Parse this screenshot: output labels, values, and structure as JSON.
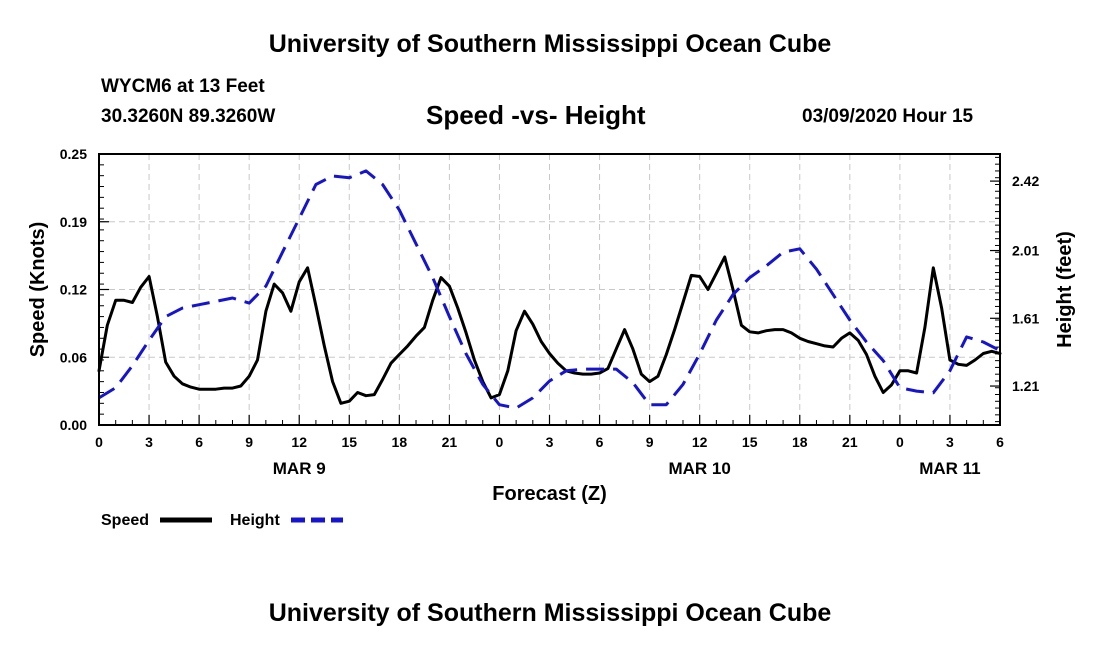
{
  "header": {
    "title_top": "University of Southern Mississippi Ocean Cube",
    "station": "WYCM6 at 13 Feet",
    "coords": "30.3260N 89.3260W",
    "chart_title": "Speed -vs- Height",
    "valid_time": "03/09/2020 Hour 15"
  },
  "footer": {
    "title_bottom": "University of Southern Mississippi Ocean Cube"
  },
  "chart_data": {
    "type": "line",
    "title": "Speed -vs- Height",
    "xlabel": "Forecast (Z)",
    "ylabel": "Speed (Knots)",
    "y2label": "Height (feet)",
    "x_range": [
      0,
      54
    ],
    "ylim": [
      0,
      0.25
    ],
    "y2lim": [
      0.98,
      2.58
    ],
    "grid": true,
    "legend_position": "bottom-left",
    "x_ticks": [
      {
        "x": 0,
        "label": "0"
      },
      {
        "x": 3,
        "label": "3"
      },
      {
        "x": 6,
        "label": "6"
      },
      {
        "x": 9,
        "label": "9"
      },
      {
        "x": 12,
        "label": "12"
      },
      {
        "x": 15,
        "label": "15"
      },
      {
        "x": 18,
        "label": "18"
      },
      {
        "x": 21,
        "label": "21"
      },
      {
        "x": 24,
        "label": "0"
      },
      {
        "x": 27,
        "label": "3"
      },
      {
        "x": 30,
        "label": "6"
      },
      {
        "x": 33,
        "label": "9"
      },
      {
        "x": 36,
        "label": "12"
      },
      {
        "x": 39,
        "label": "15"
      },
      {
        "x": 42,
        "label": "18"
      },
      {
        "x": 45,
        "label": "21"
      },
      {
        "x": 48,
        "label": "0"
      },
      {
        "x": 51,
        "label": "3"
      },
      {
        "x": 54,
        "label": "6"
      }
    ],
    "date_labels": [
      {
        "x": 12,
        "label": "MAR 9"
      },
      {
        "x": 36,
        "label": "MAR 10"
      },
      {
        "x": 51,
        "label": "MAR 11"
      }
    ],
    "y_ticks": [
      {
        "value": 0.0,
        "label": "0.00"
      },
      {
        "value": 0.0625,
        "label": "0.06"
      },
      {
        "value": 0.125,
        "label": "0.12"
      },
      {
        "value": 0.1875,
        "label": "0.19"
      },
      {
        "value": 0.25,
        "label": "0.25"
      }
    ],
    "y2_ticks": [
      {
        "value": 1.21,
        "label": "1.21"
      },
      {
        "value": 1.61,
        "label": "1.61"
      },
      {
        "value": 2.01,
        "label": "2.01"
      },
      {
        "value": 2.42,
        "label": "2.42"
      }
    ],
    "series": [
      {
        "name": "Speed",
        "axis": "left",
        "color": "#000000",
        "dash": "solid",
        "x": [
          0,
          0.5,
          1,
          1.5,
          2,
          2.5,
          3,
          3.5,
          4,
          4.5,
          5,
          5.5,
          6,
          6.5,
          7,
          7.5,
          8,
          8.5,
          9,
          9.5,
          10,
          10.5,
          11,
          11.5,
          12,
          12.5,
          13,
          13.5,
          14,
          14.5,
          15,
          15.5,
          16,
          16.5,
          17,
          17.5,
          18,
          18.5,
          19,
          19.5,
          20,
          20.5,
          21,
          21.5,
          22,
          22.5,
          23,
          23.5,
          24,
          24.5,
          25,
          25.5,
          26,
          26.5,
          27,
          27.5,
          28,
          28.5,
          29,
          29.5,
          30,
          30.5,
          31,
          31.5,
          32,
          32.5,
          33,
          33.5,
          34,
          34.5,
          35,
          35.5,
          36,
          36.5,
          37,
          37.5,
          38,
          38.5,
          39,
          39.5,
          40,
          40.5,
          41,
          41.5,
          42,
          42.5,
          43,
          43.5,
          44,
          44.5,
          45,
          45.5,
          46,
          46.5,
          47,
          47.5,
          48,
          48.5,
          49,
          49.5,
          50,
          50.5,
          51,
          51.5,
          52,
          52.5,
          53,
          53.5,
          54
        ],
        "values": [
          0.05,
          0.092,
          0.115,
          0.115,
          0.113,
          0.127,
          0.137,
          0.1,
          0.058,
          0.045,
          0.038,
          0.035,
          0.033,
          0.033,
          0.033,
          0.034,
          0.034,
          0.036,
          0.045,
          0.06,
          0.105,
          0.13,
          0.122,
          0.105,
          0.132,
          0.145,
          0.11,
          0.073,
          0.04,
          0.02,
          0.022,
          0.03,
          0.027,
          0.028,
          0.042,
          0.057,
          0.065,
          0.073,
          0.082,
          0.09,
          0.115,
          0.136,
          0.128,
          0.108,
          0.085,
          0.06,
          0.04,
          0.025,
          0.028,
          0.05,
          0.087,
          0.105,
          0.093,
          0.077,
          0.066,
          0.057,
          0.05,
          0.048,
          0.047,
          0.047,
          0.048,
          0.052,
          0.07,
          0.088,
          0.07,
          0.047,
          0.04,
          0.045,
          0.065,
          0.088,
          0.113,
          0.138,
          0.137,
          0.125,
          0.14,
          0.155,
          0.125,
          0.092,
          0.086,
          0.085,
          0.087,
          0.088,
          0.088,
          0.085,
          0.08,
          0.077,
          0.075,
          0.073,
          0.072,
          0.08,
          0.085,
          0.078,
          0.065,
          0.045,
          0.03,
          0.037,
          0.05,
          0.05,
          0.048,
          0.09,
          0.145,
          0.108,
          0.06,
          0.056,
          0.055,
          0.06,
          0.066,
          0.068,
          0.066
        ]
      },
      {
        "name": "Height",
        "axis": "right",
        "color": "#1414d2",
        "dash": "dashed",
        "x": [
          0,
          1,
          2,
          3,
          4,
          5,
          6,
          7,
          8,
          9,
          10,
          11,
          12,
          13,
          14,
          15,
          16,
          17,
          18,
          19,
          20,
          21,
          22,
          23,
          24,
          25,
          26,
          27,
          28,
          29,
          30,
          31,
          32,
          33,
          34,
          35,
          36,
          37,
          38,
          39,
          40,
          41,
          42,
          43,
          44,
          45,
          46,
          47,
          48,
          49,
          50,
          51,
          52,
          53,
          54
        ],
        "values": [
          1.14,
          1.2,
          1.33,
          1.48,
          1.62,
          1.67,
          1.69,
          1.71,
          1.73,
          1.7,
          1.8,
          2.0,
          2.2,
          2.4,
          2.45,
          2.44,
          2.48,
          2.4,
          2.25,
          2.05,
          1.85,
          1.62,
          1.4,
          1.22,
          1.1,
          1.08,
          1.14,
          1.24,
          1.3,
          1.31,
          1.31,
          1.31,
          1.23,
          1.1,
          1.1,
          1.22,
          1.4,
          1.6,
          1.75,
          1.85,
          1.92,
          2.0,
          2.02,
          1.9,
          1.75,
          1.6,
          1.47,
          1.36,
          1.2,
          1.18,
          1.17,
          1.3,
          1.5,
          1.47,
          1.42
        ]
      }
    ]
  },
  "legend": {
    "items": [
      {
        "label": "Speed",
        "color": "#000000",
        "dash": "solid"
      },
      {
        "label": "Height",
        "color": "#1414d2",
        "dash": "dashed"
      }
    ]
  }
}
